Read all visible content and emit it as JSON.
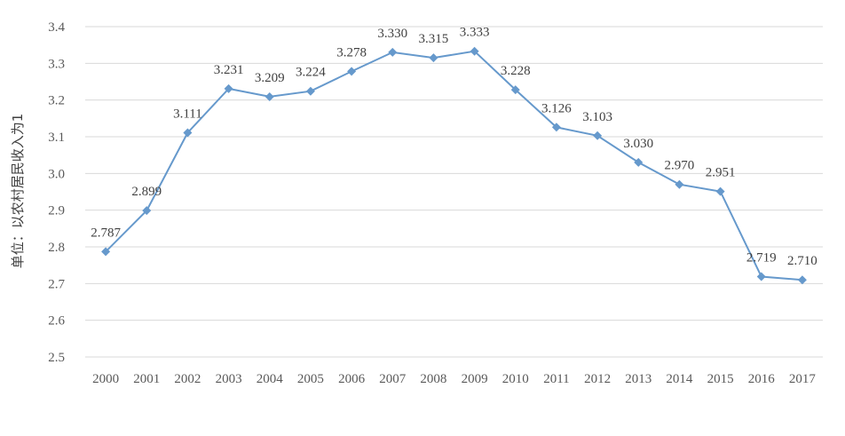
{
  "chart_data": {
    "type": "line",
    "title": "",
    "xlabel": "",
    "ylabel": "单位：以农村居民收入为1",
    "ylim": [
      2.5,
      3.4
    ],
    "yticks": [
      "2.5",
      "2.6",
      "2.7",
      "2.8",
      "2.9",
      "3.0",
      "3.1",
      "3.2",
      "3.3",
      "3.4"
    ],
    "grid": true,
    "legend": "none",
    "categories": [
      "2000",
      "2001",
      "2002",
      "2003",
      "2004",
      "2005",
      "2006",
      "2007",
      "2008",
      "2009",
      "2010",
      "2011",
      "2012",
      "2013",
      "2014",
      "2015",
      "2016",
      "2017"
    ],
    "series": [
      {
        "color": "#6699cc",
        "marker": "diamond",
        "values": [
          2.787,
          2.899,
          3.111,
          3.231,
          3.209,
          3.224,
          3.278,
          3.33,
          3.315,
          3.333,
          3.228,
          3.126,
          3.103,
          3.03,
          2.97,
          2.951,
          2.719,
          2.71
        ],
        "labels": [
          "2.787",
          "2.899",
          "3.111",
          "3.231",
          "3.209",
          "3.224",
          "3.278",
          "3.330",
          "3.315",
          "3.333",
          "3.228",
          "3.126",
          "3.103",
          "3.030",
          "2.970",
          "2.951",
          "2.719",
          "2.710"
        ]
      }
    ]
  }
}
